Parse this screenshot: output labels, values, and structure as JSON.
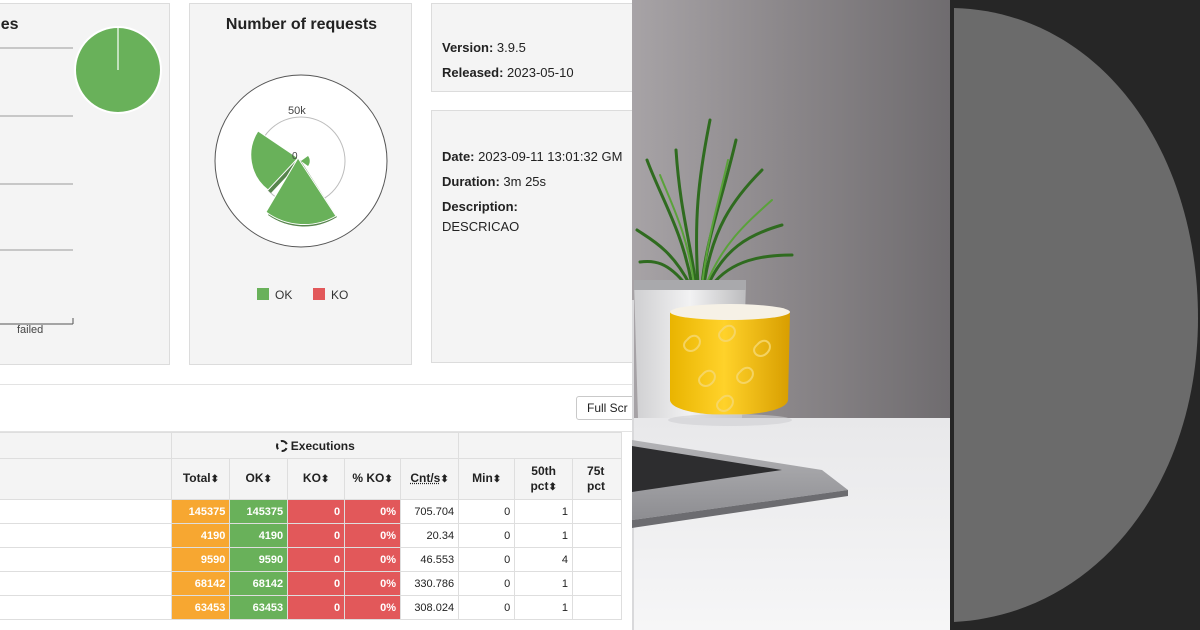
{
  "ranges_card": {
    "title": "ges",
    "failed_label": "failed"
  },
  "requests_card": {
    "title": "Number of requests",
    "axis_label": "50k",
    "center_label": "0",
    "legend": [
      {
        "label": "OK",
        "color": "#69b15a"
      },
      {
        "label": "KO",
        "color": "#e2585a"
      }
    ]
  },
  "version_card": {
    "version_label": "Version:",
    "version_value": "3.9.5",
    "released_label": "Released:",
    "released_value": "2023-05-10"
  },
  "run_card": {
    "date_label": "Date:",
    "date_value": "2023-09-11 13:01:32 GM",
    "duration_label": "Duration:",
    "duration_value": "3m 25s",
    "description_label": "Description:",
    "description_value": "DESCRICAO"
  },
  "toolbar": {
    "fullscreen_label": "Full Scr"
  },
  "table": {
    "executions_label": "Executions",
    "headers": {
      "total": "Total",
      "ok": "OK",
      "ko": "KO",
      "pko": "% KO",
      "cnts": "Cnt/s",
      "min": "Min",
      "p50_line1": "50th",
      "p50_line2": "pct",
      "p75_line1": "75t",
      "p75_line2": "pct"
    },
    "sort_glyph": "⬍",
    "rows": [
      {
        "total": "145375",
        "ok": "145375",
        "ko": "0",
        "pko": "0%",
        "cnts": "705.704",
        "min": "0",
        "p50": "1"
      },
      {
        "total": "4190",
        "ok": "4190",
        "ko": "0",
        "pko": "0%",
        "cnts": "20.34",
        "min": "0",
        "p50": "1"
      },
      {
        "total": "9590",
        "ok": "9590",
        "ko": "0",
        "pko": "0%",
        "cnts": "46.553",
        "min": "0",
        "p50": "4"
      },
      {
        "total": "68142",
        "ok": "68142",
        "ko": "0",
        "pko": "0%",
        "cnts": "330.786",
        "min": "0",
        "p50": "1"
      },
      {
        "total": "63453",
        "ok": "63453",
        "ko": "0",
        "pko": "0%",
        "cnts": "308.024",
        "min": "0",
        "p50": "1"
      }
    ]
  },
  "colors": {
    "ok": "#69b15a",
    "ko": "#e2585a",
    "total": "#f7a731"
  }
}
